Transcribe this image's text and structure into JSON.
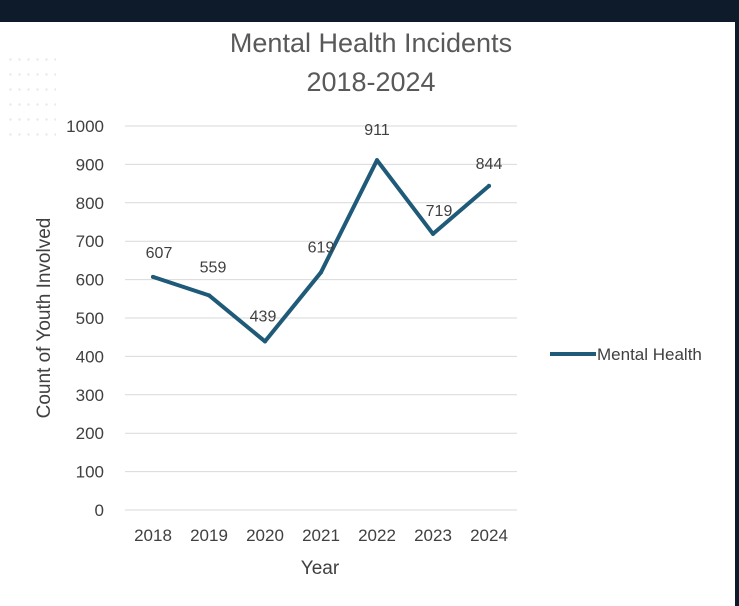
{
  "chart_data": {
    "type": "line",
    "title": [
      "Mental Health Incidents",
      "2018-2024"
    ],
    "xlabel": "Year",
    "ylabel": "Count of Youth Involved",
    "categories": [
      "2018",
      "2019",
      "2020",
      "2021",
      "2022",
      "2023",
      "2024"
    ],
    "series": [
      {
        "name": "Mental Health",
        "values": [
          607,
          559,
          439,
          619,
          911,
          719,
          844
        ],
        "color": "#1f5a78"
      }
    ],
    "ylim": [
      0,
      1000
    ],
    "yticks": [
      0,
      100,
      200,
      300,
      400,
      500,
      600,
      700,
      800,
      900,
      1000
    ],
    "grid": true,
    "legend_position": "right",
    "gridline_color": "#d9d9d9"
  }
}
